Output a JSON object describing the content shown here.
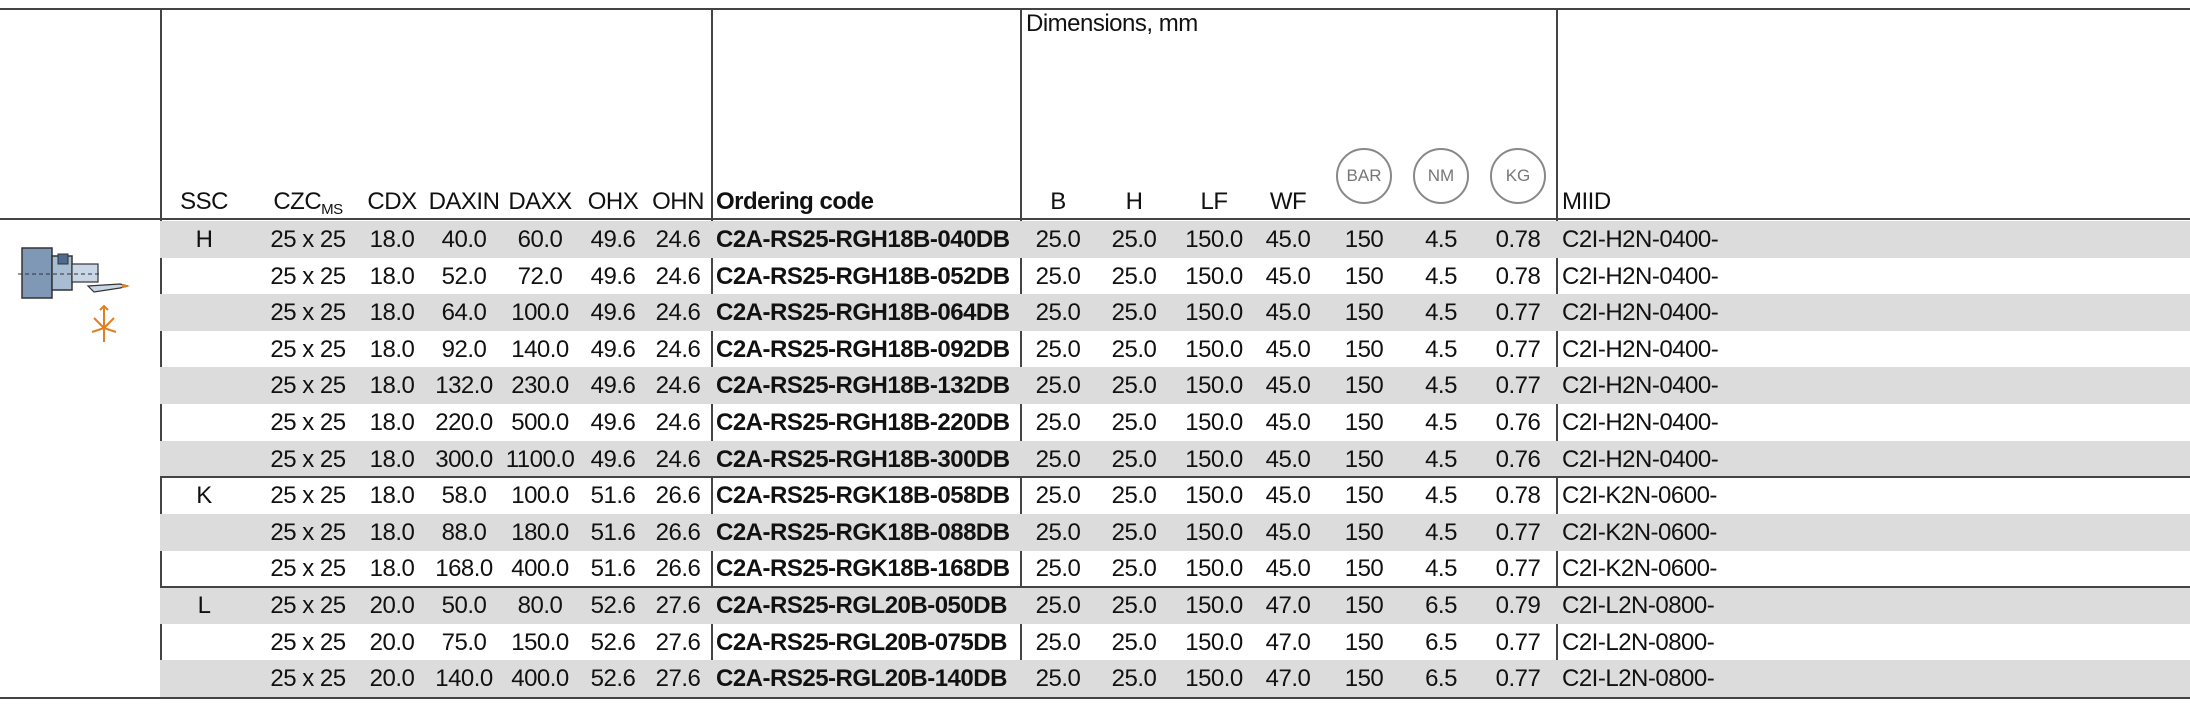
{
  "header": {
    "ssc": "SSC",
    "czc": "CZC",
    "czc_sub": "MS",
    "cdx": "CDX",
    "daxin": "DAXIN",
    "daxx": "DAXX",
    "ohx": "OHX",
    "ohn": "OHN",
    "ordering_code": "Ordering code",
    "dimensions": "Dimensions, mm",
    "b": "B",
    "h": "H",
    "lf": "LF",
    "wf": "WF",
    "bar": "BAR",
    "nm": "NM",
    "kg": "KG",
    "miid": "MIID"
  },
  "rows": [
    {
      "ssc": "H",
      "czc": "25 x 25",
      "cdx": "18.0",
      "daxin": "40.0",
      "daxx": "60.0",
      "ohx": "49.6",
      "ohn": "24.6",
      "code": "C2A-RS25-RGH18B-040DB",
      "b": "25.0",
      "h": "25.0",
      "lf": "150.0",
      "wf": "45.0",
      "bar": "150",
      "nm": "4.5",
      "kg": "0.78",
      "miid": "C2I-H2N-0400-"
    },
    {
      "ssc": "",
      "czc": "25 x 25",
      "cdx": "18.0",
      "daxin": "52.0",
      "daxx": "72.0",
      "ohx": "49.6",
      "ohn": "24.6",
      "code": "C2A-RS25-RGH18B-052DB",
      "b": "25.0",
      "h": "25.0",
      "lf": "150.0",
      "wf": "45.0",
      "bar": "150",
      "nm": "4.5",
      "kg": "0.78",
      "miid": "C2I-H2N-0400-"
    },
    {
      "ssc": "",
      "czc": "25 x 25",
      "cdx": "18.0",
      "daxin": "64.0",
      "daxx": "100.0",
      "ohx": "49.6",
      "ohn": "24.6",
      "code": "C2A-RS25-RGH18B-064DB",
      "b": "25.0",
      "h": "25.0",
      "lf": "150.0",
      "wf": "45.0",
      "bar": "150",
      "nm": "4.5",
      "kg": "0.77",
      "miid": "C2I-H2N-0400-"
    },
    {
      "ssc": "",
      "czc": "25 x 25",
      "cdx": "18.0",
      "daxin": "92.0",
      "daxx": "140.0",
      "ohx": "49.6",
      "ohn": "24.6",
      "code": "C2A-RS25-RGH18B-092DB",
      "b": "25.0",
      "h": "25.0",
      "lf": "150.0",
      "wf": "45.0",
      "bar": "150",
      "nm": "4.5",
      "kg": "0.77",
      "miid": "C2I-H2N-0400-"
    },
    {
      "ssc": "",
      "czc": "25 x 25",
      "cdx": "18.0",
      "daxin": "132.0",
      "daxx": "230.0",
      "ohx": "49.6",
      "ohn": "24.6",
      "code": "C2A-RS25-RGH18B-132DB",
      "b": "25.0",
      "h": "25.0",
      "lf": "150.0",
      "wf": "45.0",
      "bar": "150",
      "nm": "4.5",
      "kg": "0.77",
      "miid": "C2I-H2N-0400-"
    },
    {
      "ssc": "",
      "czc": "25 x 25",
      "cdx": "18.0",
      "daxin": "220.0",
      "daxx": "500.0",
      "ohx": "49.6",
      "ohn": "24.6",
      "code": "C2A-RS25-RGH18B-220DB",
      "b": "25.0",
      "h": "25.0",
      "lf": "150.0",
      "wf": "45.0",
      "bar": "150",
      "nm": "4.5",
      "kg": "0.76",
      "miid": "C2I-H2N-0400-"
    },
    {
      "ssc": "",
      "czc": "25 x 25",
      "cdx": "18.0",
      "daxin": "300.0",
      "daxx": "1100.0",
      "ohx": "49.6",
      "ohn": "24.6",
      "code": "C2A-RS25-RGH18B-300DB",
      "b": "25.0",
      "h": "25.0",
      "lf": "150.0",
      "wf": "45.0",
      "bar": "150",
      "nm": "4.5",
      "kg": "0.76",
      "miid": "C2I-H2N-0400-"
    },
    {
      "ssc": "K",
      "czc": "25 x 25",
      "cdx": "18.0",
      "daxin": "58.0",
      "daxx": "100.0",
      "ohx": "51.6",
      "ohn": "26.6",
      "code": "C2A-RS25-RGK18B-058DB",
      "b": "25.0",
      "h": "25.0",
      "lf": "150.0",
      "wf": "45.0",
      "bar": "150",
      "nm": "4.5",
      "kg": "0.78",
      "miid": "C2I-K2N-0600-"
    },
    {
      "ssc": "",
      "czc": "25 x 25",
      "cdx": "18.0",
      "daxin": "88.0",
      "daxx": "180.0",
      "ohx": "51.6",
      "ohn": "26.6",
      "code": "C2A-RS25-RGK18B-088DB",
      "b": "25.0",
      "h": "25.0",
      "lf": "150.0",
      "wf": "45.0",
      "bar": "150",
      "nm": "4.5",
      "kg": "0.77",
      "miid": "C2I-K2N-0600-"
    },
    {
      "ssc": "",
      "czc": "25 x 25",
      "cdx": "18.0",
      "daxin": "168.0",
      "daxx": "400.0",
      "ohx": "51.6",
      "ohn": "26.6",
      "code": "C2A-RS25-RGK18B-168DB",
      "b": "25.0",
      "h": "25.0",
      "lf": "150.0",
      "wf": "45.0",
      "bar": "150",
      "nm": "4.5",
      "kg": "0.77",
      "miid": "C2I-K2N-0600-"
    },
    {
      "ssc": "L",
      "czc": "25 x 25",
      "cdx": "20.0",
      "daxin": "50.0",
      "daxx": "80.0",
      "ohx": "52.6",
      "ohn": "27.6",
      "code": "C2A-RS25-RGL20B-050DB",
      "b": "25.0",
      "h": "25.0",
      "lf": "150.0",
      "wf": "47.0",
      "bar": "150",
      "nm": "6.5",
      "kg": "0.79",
      "miid": "C2I-L2N-0800-"
    },
    {
      "ssc": "",
      "czc": "25 x 25",
      "cdx": "20.0",
      "daxin": "75.0",
      "daxx": "150.0",
      "ohx": "52.6",
      "ohn": "27.6",
      "code": "C2A-RS25-RGL20B-075DB",
      "b": "25.0",
      "h": "25.0",
      "lf": "150.0",
      "wf": "47.0",
      "bar": "150",
      "nm": "6.5",
      "kg": "0.77",
      "miid": "C2I-L2N-0800-"
    },
    {
      "ssc": "",
      "czc": "25 x 25",
      "cdx": "20.0",
      "daxin": "140.0",
      "daxx": "400.0",
      "ohx": "52.6",
      "ohn": "27.6",
      "code": "C2A-RS25-RGL20B-140DB",
      "b": "25.0",
      "h": "25.0",
      "lf": "150.0",
      "wf": "47.0",
      "bar": "150",
      "nm": "6.5",
      "kg": "0.77",
      "miid": "C2I-L2N-0800-"
    }
  ]
}
